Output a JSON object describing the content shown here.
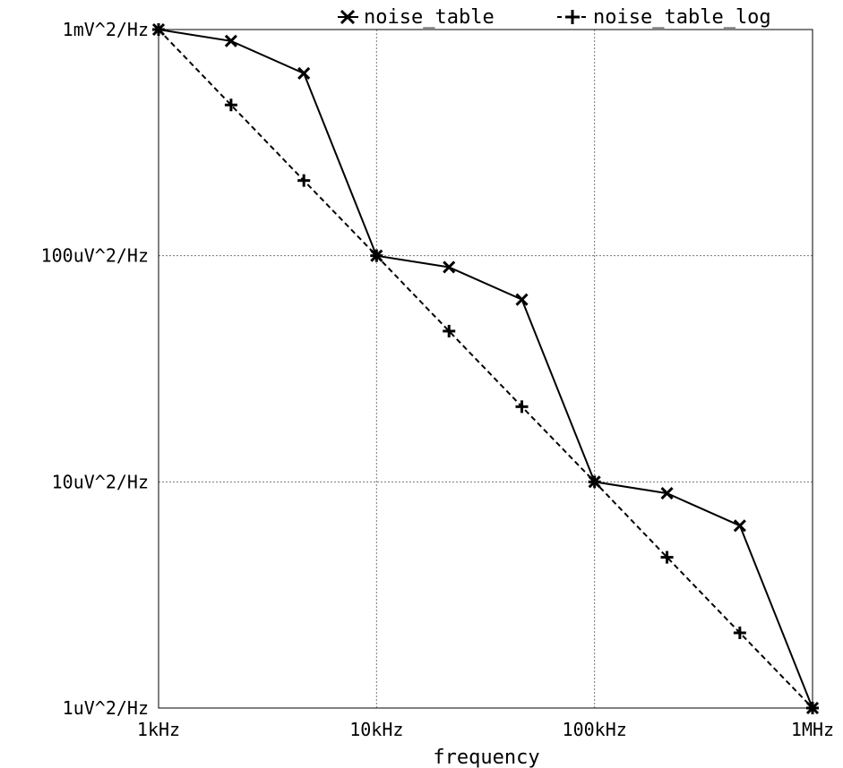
{
  "chart_data": {
    "type": "line",
    "xlabel": "frequency",
    "ylabel": "",
    "x_scale": "log",
    "y_scale": "log",
    "xlim": [
      1000,
      1000000
    ],
    "ylim": [
      1e-06,
      0.001
    ],
    "x_ticks": [
      {
        "value": 1000,
        "label": "1kHz"
      },
      {
        "value": 10000,
        "label": "10kHz"
      },
      {
        "value": 100000,
        "label": "100kHz"
      },
      {
        "value": 1000000,
        "label": "1MHz"
      }
    ],
    "y_ticks": [
      {
        "value": 1e-06,
        "label": "1uV^2/Hz"
      },
      {
        "value": 1e-05,
        "label": "10uV^2/Hz"
      },
      {
        "value": 0.0001,
        "label": "100uV^2/Hz"
      },
      {
        "value": 0.001,
        "label": "1mV^2/Hz"
      }
    ],
    "grid": true,
    "legend_position": "top",
    "series": [
      {
        "name": "noise_table",
        "line_style": "solid",
        "marker": "x",
        "color": "#000000",
        "x": [
          1000,
          2150,
          4640,
          10000,
          21500,
          46400,
          100000,
          215000,
          464000,
          1000000
        ],
        "y": [
          0.001,
          0.00089,
          0.00064,
          0.0001,
          8.9e-05,
          6.4e-05,
          1e-05,
          8.9e-06,
          6.4e-06,
          1e-06
        ]
      },
      {
        "name": "noise_table_log",
        "line_style": "dashed",
        "marker": "+",
        "color": "#000000",
        "x": [
          1000,
          2150,
          4640,
          10000,
          21500,
          46400,
          100000,
          215000,
          464000,
          1000000
        ],
        "y": [
          0.001,
          0.000464,
          0.000215,
          0.0001,
          4.64e-05,
          2.15e-05,
          1e-05,
          4.64e-06,
          2.15e-06,
          1e-06
        ]
      }
    ]
  }
}
